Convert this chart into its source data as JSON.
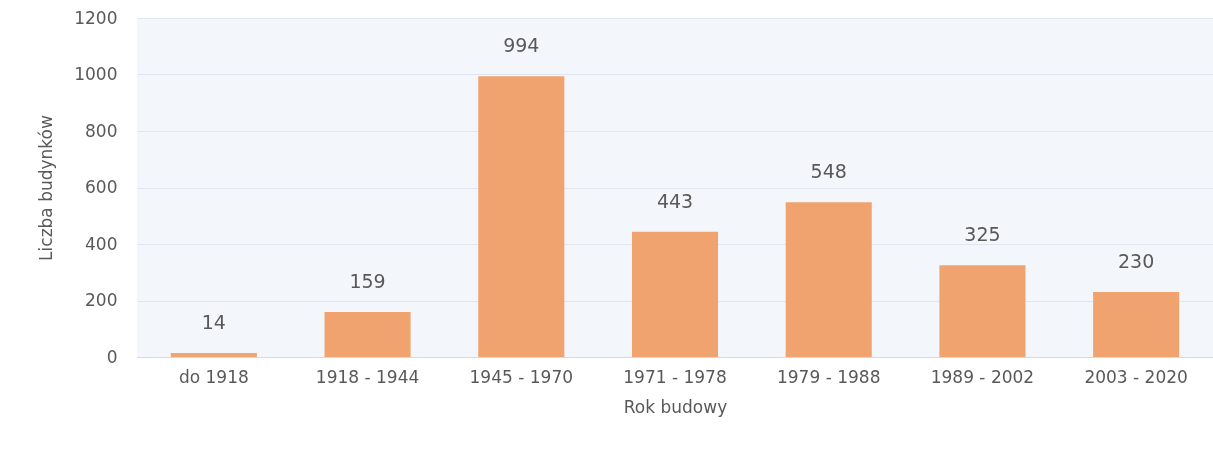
{
  "chart_data": {
    "type": "bar",
    "xlabel": "Rok budowy",
    "ylabel": "Liczba budynków",
    "categories": [
      "do 1918",
      "1918 - 1944",
      "1945 - 1970",
      "1971 - 1978",
      "1979 - 1988",
      "1989 - 2002",
      "2003 - 2020"
    ],
    "values": [
      14,
      159,
      994,
      443,
      548,
      325,
      230
    ],
    "color": "#f0a36e",
    "ylim": [
      0,
      1200
    ],
    "yticks": [
      0,
      200,
      400,
      600,
      800,
      1000,
      1200
    ],
    "grid": "y",
    "data_labels": true
  }
}
